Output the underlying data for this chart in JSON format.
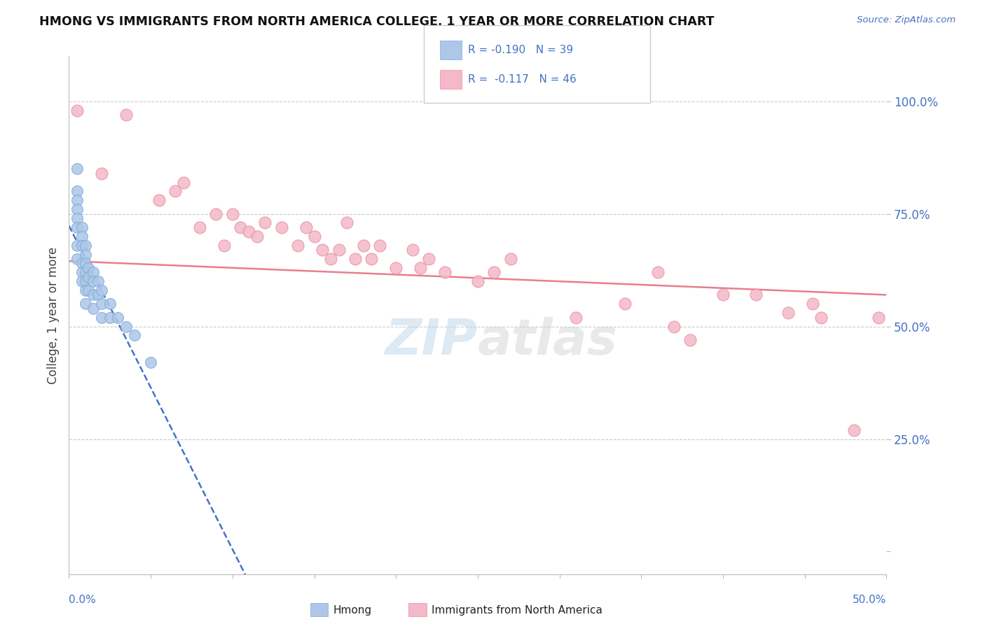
{
  "title": "HMONG VS IMMIGRANTS FROM NORTH AMERICA COLLEGE, 1 YEAR OR MORE CORRELATION CHART",
  "source_text": "Source: ZipAtlas.com",
  "ylabel": "College, 1 year or more",
  "xlim": [
    0.0,
    0.5
  ],
  "ylim": [
    -0.05,
    1.1
  ],
  "yticks": [
    0.0,
    0.25,
    0.5,
    0.75,
    1.0
  ],
  "ytick_labels": [
    "",
    "25.0%",
    "50.0%",
    "75.0%",
    "100.0%"
  ],
  "hmong_color": "#aec6e8",
  "hmong_edge_color": "#7aafd4",
  "immigrants_color": "#f4b8c8",
  "immigrants_edge_color": "#e8909e",
  "trend_blue_color": "#4472c4",
  "trend_pink_color": "#e87d8e",
  "R_hmong": -0.19,
  "N_hmong": 39,
  "R_immigrants": -0.117,
  "N_immigrants": 46,
  "watermark": "ZIPatlas",
  "grid_color": "#cccccc",
  "background_color": "#ffffff",
  "hmong_x": [
    0.005,
    0.005,
    0.005,
    0.005,
    0.005,
    0.005,
    0.005,
    0.005,
    0.008,
    0.008,
    0.008,
    0.008,
    0.008,
    0.008,
    0.01,
    0.01,
    0.01,
    0.01,
    0.01,
    0.01,
    0.01,
    0.012,
    0.012,
    0.012,
    0.015,
    0.015,
    0.015,
    0.015,
    0.018,
    0.018,
    0.02,
    0.02,
    0.02,
    0.025,
    0.025,
    0.03,
    0.035,
    0.04,
    0.05
  ],
  "hmong_y": [
    0.85,
    0.8,
    0.78,
    0.76,
    0.74,
    0.72,
    0.68,
    0.65,
    0.72,
    0.7,
    0.68,
    0.64,
    0.62,
    0.6,
    0.68,
    0.66,
    0.64,
    0.62,
    0.6,
    0.58,
    0.55,
    0.63,
    0.61,
    0.58,
    0.62,
    0.6,
    0.57,
    0.54,
    0.6,
    0.57,
    0.58,
    0.55,
    0.52,
    0.55,
    0.52,
    0.52,
    0.5,
    0.48,
    0.42
  ],
  "immigrants_x": [
    0.005,
    0.02,
    0.035,
    0.055,
    0.065,
    0.07,
    0.08,
    0.09,
    0.095,
    0.1,
    0.105,
    0.11,
    0.115,
    0.12,
    0.13,
    0.14,
    0.145,
    0.15,
    0.155,
    0.16,
    0.165,
    0.17,
    0.175,
    0.18,
    0.185,
    0.19,
    0.2,
    0.21,
    0.215,
    0.22,
    0.23,
    0.25,
    0.26,
    0.27,
    0.31,
    0.34,
    0.36,
    0.37,
    0.38,
    0.4,
    0.42,
    0.44,
    0.455,
    0.46,
    0.48,
    0.495
  ],
  "immigrants_y": [
    0.98,
    0.84,
    0.97,
    0.78,
    0.8,
    0.82,
    0.72,
    0.75,
    0.68,
    0.75,
    0.72,
    0.71,
    0.7,
    0.73,
    0.72,
    0.68,
    0.72,
    0.7,
    0.67,
    0.65,
    0.67,
    0.73,
    0.65,
    0.68,
    0.65,
    0.68,
    0.63,
    0.67,
    0.63,
    0.65,
    0.62,
    0.6,
    0.62,
    0.65,
    0.52,
    0.55,
    0.62,
    0.5,
    0.47,
    0.57,
    0.57,
    0.53,
    0.55,
    0.52,
    0.27,
    0.52
  ],
  "trend_hmong_x0": 0.0,
  "trend_hmong_x1": 0.14,
  "trend_pink_x0": 0.0,
  "trend_pink_x1": 0.5,
  "trend_pink_y0": 0.645,
  "trend_pink_y1": 0.57
}
